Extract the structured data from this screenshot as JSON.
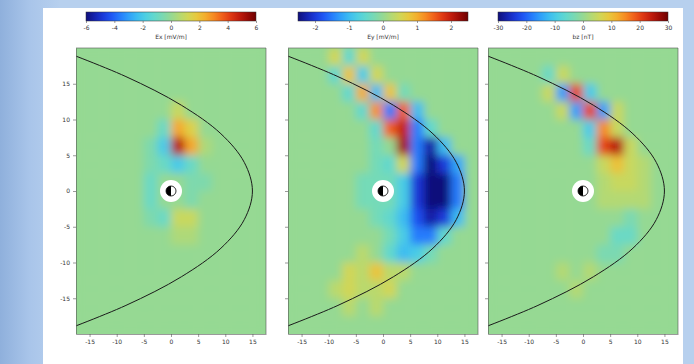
{
  "chart_data": [
    {
      "type": "heatmap",
      "colorbar_label": "Ex [mV/m]",
      "xlim": [
        -17.5,
        17.5
      ],
      "ylim": [
        -20,
        20
      ],
      "xticks": [
        -15,
        -10,
        -5,
        0,
        5,
        10,
        15
      ],
      "yticks": [
        15,
        10,
        5,
        0,
        -5,
        -10,
        -15
      ],
      "zlim": [
        -6,
        6
      ],
      "zticks": [
        -6,
        -4,
        -2,
        0,
        2,
        4,
        6
      ],
      "x": [
        -16.25,
        -13.75,
        -11.25,
        -8.75,
        -6.25,
        -3.75,
        -1.25,
        1.25,
        3.75,
        6.25,
        8.75,
        11.25,
        13.75,
        16.25
      ],
      "y": [
        18.75,
        16.25,
        13.75,
        11.25,
        8.75,
        6.25,
        3.75,
        1.25,
        -1.25,
        -3.75,
        -6.25,
        -8.75,
        -11.25,
        -13.75,
        -16.25,
        -18.75
      ],
      "z": [
        [
          0,
          0,
          0,
          0,
          0,
          0,
          0,
          0,
          0,
          0,
          0,
          0,
          0,
          0
        ],
        [
          0,
          0,
          0,
          0,
          0,
          0,
          0,
          0,
          0,
          0,
          0,
          0,
          0,
          0
        ],
        [
          0,
          0,
          0,
          0,
          0,
          0,
          0,
          0,
          0,
          0,
          0,
          0,
          0,
          0
        ],
        [
          0,
          0,
          0,
          0,
          0,
          0,
          0,
          1,
          0,
          0,
          0,
          0,
          0,
          0
        ],
        [
          0,
          0,
          0,
          0,
          0,
          0,
          -1,
          2.5,
          1.5,
          0,
          0,
          0,
          0,
          0
        ],
        [
          0,
          0,
          0,
          0,
          0,
          -0.5,
          -2,
          5,
          2.5,
          0.5,
          0,
          0,
          0,
          0
        ],
        [
          0,
          0,
          0,
          0,
          0,
          -0.5,
          -1,
          -2,
          -1,
          0,
          0,
          0,
          0,
          0
        ],
        [
          0,
          0,
          0,
          0,
          0,
          -1,
          0,
          0,
          -0.5,
          -0.5,
          0,
          0,
          0,
          0
        ],
        [
          0,
          0,
          0,
          0,
          0,
          -1,
          0,
          0,
          -0.5,
          0,
          0,
          0,
          0,
          0
        ],
        [
          0,
          0,
          0,
          0,
          0,
          -0.5,
          -1,
          1,
          1,
          0,
          0,
          0,
          0,
          0
        ],
        [
          0,
          0,
          0,
          0,
          0,
          0,
          0,
          0.5,
          0.5,
          0,
          0,
          0,
          0,
          0
        ],
        [
          0,
          0,
          0,
          0,
          0,
          0,
          0,
          0,
          0,
          0,
          0,
          0,
          0,
          0
        ],
        [
          0,
          0,
          0,
          0,
          0,
          0,
          0,
          0,
          0,
          0,
          0,
          0,
          0,
          0
        ],
        [
          0,
          0,
          0,
          0,
          0,
          0,
          0,
          0,
          0,
          0,
          0,
          0,
          0,
          0
        ],
        [
          0,
          0,
          0,
          0,
          0,
          0,
          0,
          0,
          0,
          0,
          0,
          0,
          0,
          0
        ],
        [
          0,
          0,
          0,
          0,
          0,
          0,
          0,
          0,
          0,
          0,
          0,
          0,
          0,
          0
        ]
      ],
      "boundary": {
        "x": [
          -21.4,
          -8.3,
          1.9,
          9.2,
          13.5,
          15,
          13.5,
          9.2,
          1.9,
          -8.3,
          -21.4
        ],
        "y": [
          -20,
          -16,
          -12,
          -8,
          -4,
          0,
          4,
          8,
          12,
          16,
          20
        ]
      }
    },
    {
      "type": "heatmap",
      "colorbar_label": "Ey [mV/m]",
      "tick_labels": "x",
      "xlim": [
        -17.5,
        17.5
      ],
      "ylim": [
        -20,
        20
      ],
      "xticks": [
        -15,
        -10,
        -5,
        0,
        5,
        10,
        15
      ],
      "yticks": [
        15,
        10,
        5,
        0,
        -5,
        -10,
        -15
      ],
      "zlim": [
        -2.5,
        2.5
      ],
      "zticks": [
        -2,
        -1,
        0,
        1,
        2
      ],
      "x": [
        -16.25,
        -13.75,
        -11.25,
        -8.75,
        -6.25,
        -3.75,
        -1.25,
        1.25,
        3.75,
        6.25,
        8.75,
        11.25,
        13.75,
        16.25
      ],
      "y": [
        18.75,
        16.25,
        13.75,
        11.25,
        8.75,
        6.25,
        3.75,
        1.25,
        -1.25,
        -3.75,
        -6.25,
        -8.75,
        -11.25,
        -13.75,
        -16.25,
        -18.75
      ],
      "z": [
        [
          0,
          0,
          0,
          0.5,
          -0.5,
          0.5,
          0,
          0,
          0,
          0,
          0,
          0,
          0,
          0
        ],
        [
          0,
          0,
          0,
          -0.5,
          0.8,
          -0.8,
          0.5,
          0,
          0,
          0,
          0,
          0,
          0,
          0
        ],
        [
          0,
          0,
          0,
          0,
          -0.5,
          1,
          -1,
          0.8,
          -0.3,
          0,
          0,
          0,
          0,
          0
        ],
        [
          0,
          0,
          0,
          0,
          0,
          -0.5,
          1.2,
          -1.5,
          1.5,
          -1,
          0,
          0,
          0,
          0
        ],
        [
          0,
          0,
          0,
          0,
          0,
          0,
          -0.5,
          1.5,
          2,
          -1.5,
          -0.5,
          0,
          0,
          0
        ],
        [
          0,
          0,
          0,
          0,
          0,
          0,
          -0.3,
          0,
          2.2,
          -1.5,
          -2.3,
          -1,
          0,
          0
        ],
        [
          0,
          0,
          0,
          0,
          0,
          0,
          -0.3,
          -0.5,
          0.5,
          -1.5,
          -2.5,
          -2,
          -1.2,
          0
        ],
        [
          0,
          0,
          0,
          0,
          0,
          -0.3,
          -0.3,
          -0.3,
          -0.8,
          -2,
          -2.5,
          -2.5,
          -1.5,
          0
        ],
        [
          0,
          0,
          0,
          0,
          0,
          -0.3,
          -0.3,
          -0.3,
          -0.8,
          -2,
          -2.5,
          -2.5,
          -1.5,
          0
        ],
        [
          0,
          0,
          0,
          0,
          0,
          0,
          -0.3,
          -0.5,
          -1,
          -1.8,
          -2.3,
          -2,
          -1,
          0
        ],
        [
          0,
          0,
          0,
          0,
          0,
          0,
          0,
          -0.3,
          -0.8,
          -1.5,
          -1.5,
          -0.5,
          0,
          0
        ],
        [
          0,
          0,
          0,
          0,
          0,
          0.3,
          0,
          -0.5,
          -1,
          -0.8,
          -0.3,
          0,
          0,
          0
        ],
        [
          0,
          0,
          0,
          0,
          0.5,
          0.3,
          0.8,
          0.3,
          0.3,
          0,
          0,
          0,
          0,
          0
        ],
        [
          0,
          0,
          0,
          0.3,
          0.5,
          0.3,
          0.3,
          0.5,
          0,
          0,
          0,
          0,
          0,
          0
        ],
        [
          0,
          0,
          0,
          0,
          0.3,
          0,
          0.3,
          0,
          0,
          0,
          0,
          0,
          0,
          0
        ],
        [
          0,
          0,
          0,
          0,
          0,
          0,
          0,
          0,
          0,
          0,
          0,
          0,
          0,
          0
        ]
      ],
      "boundary": {
        "x": [
          -21.4,
          -8.3,
          1.9,
          9.2,
          13.5,
          15,
          13.5,
          9.2,
          1.9,
          -8.3,
          -21.4
        ],
        "y": [
          -20,
          -16,
          -12,
          -8,
          -4,
          0,
          4,
          8,
          12,
          16,
          20
        ]
      }
    },
    {
      "type": "heatmap",
      "colorbar_label": "bz [nT]",
      "tick_labels": "x",
      "xlim": [
        -17.5,
        17.5
      ],
      "ylim": [
        -20,
        20
      ],
      "xticks": [
        -15,
        -10,
        -5,
        0,
        5,
        10,
        15
      ],
      "yticks": [
        15,
        10,
        5,
        0,
        -5,
        -10,
        -15
      ],
      "zlim": [
        -30,
        30
      ],
      "zticks": [
        -30,
        -20,
        -10,
        0,
        10,
        20,
        30
      ],
      "x": [
        -16.25,
        -13.75,
        -11.25,
        -8.75,
        -6.25,
        -3.75,
        -1.25,
        1.25,
        3.75,
        6.25,
        8.75,
        11.25,
        13.75,
        16.25
      ],
      "y": [
        18.75,
        16.25,
        13.75,
        11.25,
        8.75,
        6.25,
        3.75,
        1.25,
        -1.25,
        -3.75,
        -6.25,
        -8.75,
        -11.25,
        -13.75,
        -16.25,
        -18.75
      ],
      "z": [
        [
          0,
          0,
          0,
          0,
          0,
          0,
          0,
          0,
          0,
          0,
          0,
          0,
          0,
          0
        ],
        [
          0,
          0,
          0,
          0,
          -5,
          5,
          0,
          0,
          0,
          0,
          0,
          0,
          0,
          0
        ],
        [
          0,
          0,
          0,
          0,
          5,
          -15,
          20,
          -10,
          0,
          0,
          0,
          0,
          0,
          0
        ],
        [
          0,
          0,
          0,
          0,
          0,
          5,
          -15,
          20,
          -15,
          5,
          0,
          0,
          0,
          0
        ],
        [
          0,
          0,
          0,
          0,
          0,
          0,
          0,
          -10,
          15,
          5,
          0,
          0,
          0,
          0
        ],
        [
          0,
          0,
          0,
          0,
          0,
          0,
          0,
          -5,
          20,
          25,
          5,
          0,
          0,
          0
        ],
        [
          0,
          0,
          0,
          0,
          0,
          0,
          0,
          0,
          5,
          10,
          5,
          3,
          0,
          0
        ],
        [
          0,
          0,
          0,
          0,
          0,
          0,
          0,
          0,
          3,
          5,
          5,
          3,
          0,
          0
        ],
        [
          0,
          0,
          0,
          0,
          0,
          0,
          0,
          0,
          3,
          3,
          3,
          3,
          0,
          0
        ],
        [
          0,
          0,
          0,
          0,
          0,
          0,
          0,
          0,
          0,
          0,
          -3,
          0,
          0,
          0
        ],
        [
          0,
          0,
          0,
          0,
          0,
          0,
          0,
          0,
          0,
          -5,
          -5,
          0,
          0,
          0
        ],
        [
          0,
          0,
          0,
          0,
          0,
          0,
          0,
          0,
          -3,
          -3,
          0,
          0,
          0,
          0
        ],
        [
          0,
          0,
          0,
          0,
          0,
          3,
          0,
          3,
          0,
          0,
          0,
          0,
          0,
          0
        ],
        [
          0,
          0,
          0,
          0,
          0,
          0,
          3,
          0,
          0,
          0,
          0,
          0,
          0,
          0
        ],
        [
          0,
          0,
          0,
          0,
          0,
          0,
          0,
          0,
          0,
          0,
          0,
          0,
          0,
          0
        ],
        [
          0,
          0,
          0,
          0,
          0,
          0,
          0,
          0,
          0,
          0,
          0,
          0,
          0,
          0
        ]
      ],
      "boundary": {
        "x": [
          -21.4,
          -8.3,
          1.9,
          9.2,
          13.5,
          15,
          13.5,
          9.2,
          1.9,
          -8.3,
          -21.4
        ],
        "y": [
          -20,
          -16,
          -12,
          -8,
          -4,
          0,
          4,
          8,
          12,
          16,
          20
        ]
      }
    }
  ]
}
